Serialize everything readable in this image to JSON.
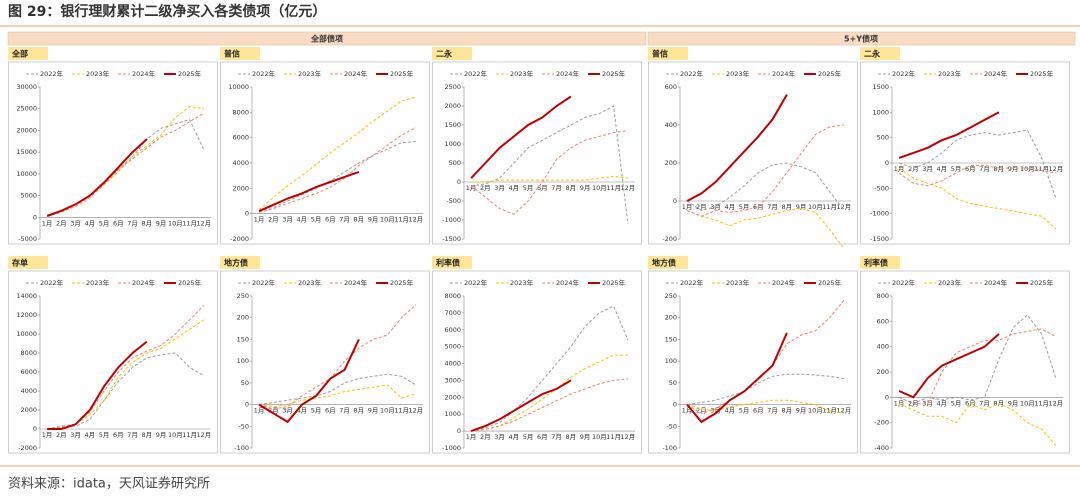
{
  "title": "图 29：银行理财累计二级净买入各类债项（亿元）",
  "source": "资料来源：idata，天风证券研究所",
  "header": [
    "全部债项",
    "5+Y债项"
  ],
  "chart_data": [
    {
      "type": "line",
      "title": "全部",
      "categories": [
        "1月",
        "2月",
        "3月",
        "4月",
        "5月",
        "6月",
        "7月",
        "8月",
        "9月",
        "10月",
        "11月",
        "12月"
      ],
      "ylim": [
        -5000,
        30000
      ],
      "yticks": [
        -5000,
        0,
        5000,
        10000,
        15000,
        20000,
        25000,
        30000
      ],
      "series": [
        {
          "name": "2022年",
          "color": "#9e9e9e",
          "values": [
            500,
            1500,
            3000,
            5000,
            8000,
            11000,
            14000,
            18000,
            20500,
            21500,
            22500,
            15500
          ]
        },
        {
          "name": "2023年",
          "color": "#ffc000",
          "values": [
            300,
            1500,
            3000,
            5000,
            7500,
            10500,
            14000,
            16500,
            19000,
            23000,
            25500,
            25000
          ]
        },
        {
          "name": "2024年",
          "color": "#f4826a",
          "values": [
            200,
            1200,
            2500,
            4500,
            7500,
            11000,
            13500,
            16000,
            18500,
            20000,
            22000,
            24000
          ]
        },
        {
          "name": "2025年",
          "color": "#c00000",
          "values": [
            300,
            1500,
            3000,
            5000,
            8000,
            11500,
            15000,
            18000,
            null,
            null,
            null,
            null
          ]
        }
      ]
    },
    {
      "type": "line",
      "title": "普信",
      "categories": [
        "1月",
        "2月",
        "3月",
        "4月",
        "5月",
        "6月",
        "7月",
        "8月",
        "9月",
        "10月",
        "11月",
        "12月"
      ],
      "ylim": [
        -2000,
        10000
      ],
      "yticks": [
        -2000,
        0,
        2000,
        4000,
        6000,
        8000,
        10000
      ],
      "series": [
        {
          "name": "2022年",
          "color": "#9e9e9e",
          "values": [
            200,
            500,
            1000,
            1500,
            2000,
            2600,
            3300,
            4000,
            4600,
            5100,
            5600,
            5700
          ]
        },
        {
          "name": "2023年",
          "color": "#ffc000",
          "values": [
            300,
            1300,
            2200,
            3000,
            3900,
            4800,
            5600,
            6400,
            7300,
            8100,
            8900,
            9200
          ]
        },
        {
          "name": "2024年",
          "color": "#f4826a",
          "values": [
            100,
            400,
            800,
            1200,
            1600,
            2100,
            2800,
            3800,
            4600,
            5400,
            6200,
            6800
          ]
        },
        {
          "name": "2025年",
          "color": "#c00000",
          "values": [
            200,
            700,
            1200,
            1600,
            2100,
            2500,
            2900,
            3300,
            null,
            null,
            null,
            null
          ]
        }
      ]
    },
    {
      "type": "line",
      "title": "二永",
      "categories": [
        "1月",
        "2月",
        "3月",
        "4月",
        "5月",
        "6月",
        "7月",
        "8月",
        "9月",
        "10月",
        "11月",
        "12月"
      ],
      "ylim": [
        -1500,
        2500
      ],
      "yticks": [
        -1500,
        -1000,
        -500,
        0,
        500,
        1000,
        1500,
        2000,
        2500
      ],
      "series": [
        {
          "name": "2022年",
          "color": "#9e9e9e",
          "values": [
            -100,
            -50,
            100,
            500,
            900,
            1100,
            1300,
            1500,
            1700,
            1800,
            2000,
            -1100
          ]
        },
        {
          "name": "2023年",
          "color": "#ffc000",
          "values": [
            0,
            0,
            50,
            50,
            50,
            50,
            50,
            50,
            50,
            100,
            150,
            100
          ]
        },
        {
          "name": "2024年",
          "color": "#f4826a",
          "values": [
            -100,
            -400,
            -700,
            -850,
            -500,
            0,
            600,
            900,
            1100,
            1200,
            1300,
            1350
          ]
        },
        {
          "name": "2025年",
          "color": "#c00000",
          "values": [
            100,
            500,
            900,
            1200,
            1500,
            1700,
            2000,
            2250,
            null,
            null,
            null,
            null
          ]
        }
      ]
    },
    {
      "type": "line",
      "title": "普信",
      "categories": [
        "1月",
        "2月",
        "3月",
        "4月",
        "5月",
        "6月",
        "7月",
        "8月",
        "9月",
        "10月",
        "11月",
        "12月"
      ],
      "ylim": [
        -200,
        600
      ],
      "yticks": [
        -200,
        0,
        200,
        400,
        600
      ],
      "series": [
        {
          "name": "2022年",
          "color": "#9e9e9e",
          "values": [
            0,
            -50,
            -30,
            20,
            80,
            150,
            190,
            200,
            180,
            150,
            50,
            -50
          ]
        },
        {
          "name": "2023年",
          "color": "#ffc000",
          "values": [
            -50,
            -80,
            -100,
            -130,
            -100,
            -90,
            -70,
            -50,
            -40,
            -60,
            -150,
            -250
          ]
        },
        {
          "name": "2024年",
          "color": "#f4826a",
          "values": [
            -50,
            -80,
            -50,
            -60,
            -50,
            -30,
            50,
            150,
            250,
            350,
            390,
            400
          ]
        },
        {
          "name": "2025年",
          "color": "#c00000",
          "values": [
            0,
            40,
            100,
            180,
            260,
            340,
            430,
            560,
            null,
            null,
            null,
            null
          ]
        }
      ]
    },
    {
      "type": "line",
      "title": "二永",
      "categories": [
        "1月",
        "2月",
        "3月",
        "4月",
        "5月",
        "6月",
        "7月",
        "8月",
        "9月",
        "10月",
        "11月",
        "12月"
      ],
      "ylim": [
        -1500,
        1500
      ],
      "yticks": [
        -1500,
        -1000,
        -500,
        0,
        500,
        1000,
        1500
      ],
      "series": [
        {
          "name": "2022年",
          "color": "#9e9e9e",
          "values": [
            0,
            -100,
            0,
            200,
            450,
            550,
            600,
            550,
            600,
            650,
            100,
            -700
          ]
        },
        {
          "name": "2023年",
          "color": "#ffc000",
          "values": [
            -100,
            -300,
            -400,
            -500,
            -700,
            -800,
            -850,
            -900,
            -950,
            -1000,
            -1050,
            -1300
          ]
        },
        {
          "name": "2024年",
          "color": "#f4826a",
          "values": [
            -200,
            -400,
            -450,
            -350,
            -200,
            -50,
            -50,
            -100,
            -100,
            -100,
            -150,
            -200
          ]
        },
        {
          "name": "2025年",
          "color": "#c00000",
          "values": [
            100,
            200,
            300,
            450,
            550,
            700,
            850,
            1000,
            null,
            null,
            null,
            null
          ]
        }
      ]
    },
    {
      "type": "line",
      "title": "存单",
      "categories": [
        "1月",
        "2月",
        "3月",
        "4月",
        "5月",
        "6月",
        "7月",
        "8月",
        "9月",
        "10月",
        "11月",
        "12月"
      ],
      "ylim": [
        -2000,
        14000
      ],
      "yticks": [
        -2000,
        0,
        2000,
        4000,
        6000,
        8000,
        10000,
        12000,
        14000
      ],
      "series": [
        {
          "name": "2022年",
          "color": "#9e9e9e",
          "values": [
            0,
            200,
            300,
            1000,
            3000,
            5000,
            6500,
            7500,
            7800,
            8000,
            6500,
            5600
          ]
        },
        {
          "name": "2023年",
          "color": "#ffc000",
          "values": [
            0,
            100,
            500,
            1500,
            3000,
            5500,
            7000,
            8000,
            8500,
            9500,
            10500,
            11500
          ]
        },
        {
          "name": "2024年",
          "color": "#f4826a",
          "values": [
            0,
            300,
            500,
            1800,
            4000,
            6000,
            7500,
            8200,
            8800,
            10000,
            11500,
            13000
          ]
        },
        {
          "name": "2025年",
          "color": "#c00000",
          "values": [
            0,
            0,
            500,
            2000,
            4500,
            6500,
            8000,
            9200,
            null,
            null,
            null,
            null
          ]
        }
      ]
    },
    {
      "type": "line",
      "title": "地方债",
      "categories": [
        "1月",
        "2月",
        "3月",
        "4月",
        "5月",
        "6月",
        "7月",
        "8月",
        "9月",
        "10月",
        "11月",
        "12月"
      ],
      "ylim": [
        -100,
        250
      ],
      "yticks": [
        -100,
        -50,
        0,
        50,
        100,
        150,
        200,
        250
      ],
      "series": [
        {
          "name": "2022年",
          "color": "#9e9e9e",
          "values": [
            0,
            5,
            10,
            15,
            20,
            30,
            50,
            60,
            65,
            70,
            65,
            45
          ]
        },
        {
          "name": "2023年",
          "color": "#ffc000",
          "values": [
            0,
            -5,
            0,
            10,
            15,
            20,
            30,
            35,
            40,
            45,
            15,
            25
          ]
        },
        {
          "name": "2024年",
          "color": "#f4826a",
          "values": [
            0,
            -10,
            -5,
            20,
            40,
            60,
            100,
            130,
            150,
            160,
            200,
            230
          ]
        },
        {
          "name": "2025年",
          "color": "#c00000",
          "values": [
            0,
            -20,
            -40,
            0,
            20,
            60,
            80,
            150,
            null,
            null,
            null,
            null
          ]
        }
      ]
    },
    {
      "type": "line",
      "title": "利率债",
      "categories": [
        "1月",
        "2月",
        "3月",
        "4月",
        "5月",
        "6月",
        "7月",
        "8月",
        "9月",
        "10月",
        "11月",
        "12月"
      ],
      "ylim": [
        -1000,
        8000
      ],
      "yticks": [
        -1000,
        0,
        1000,
        2000,
        3000,
        4000,
        5000,
        6000,
        7000,
        8000
      ],
      "series": [
        {
          "name": "2022年",
          "color": "#9e9e9e",
          "values": [
            0,
            200,
            500,
            1200,
            2000,
            3000,
            4000,
            5000,
            6200,
            7000,
            7400,
            5400
          ]
        },
        {
          "name": "2023年",
          "color": "#ffc000",
          "values": [
            0,
            100,
            300,
            800,
            1300,
            1900,
            2500,
            3200,
            3700,
            4100,
            4500,
            4500
          ]
        },
        {
          "name": "2024年",
          "color": "#f4826a",
          "values": [
            0,
            100,
            300,
            600,
            1000,
            1400,
            1800,
            2200,
            2500,
            2800,
            3000,
            3100
          ]
        },
        {
          "name": "2025年",
          "color": "#c00000",
          "values": [
            0,
            300,
            700,
            1200,
            1700,
            2200,
            2500,
            3000,
            null,
            null,
            null,
            null
          ]
        }
      ]
    },
    {
      "type": "line",
      "title": "地方债",
      "categories": [
        "1月",
        "2月",
        "3月",
        "4月",
        "5月",
        "6月",
        "7月",
        "8月",
        "9月",
        "10月",
        "11月",
        "12月"
      ],
      "ylim": [
        -100,
        250
      ],
      "yticks": [
        -100,
        -50,
        0,
        50,
        100,
        150,
        200,
        250
      ],
      "series": [
        {
          "name": "2022年",
          "color": "#9e9e9e",
          "values": [
            0,
            5,
            10,
            20,
            30,
            50,
            65,
            70,
            70,
            68,
            65,
            60
          ]
        },
        {
          "name": "2023年",
          "color": "#ffc000",
          "values": [
            0,
            -10,
            -15,
            -5,
            0,
            5,
            10,
            10,
            5,
            0,
            -15,
            -20
          ]
        },
        {
          "name": "2024年",
          "color": "#f4826a",
          "values": [
            0,
            -20,
            -10,
            10,
            30,
            60,
            90,
            140,
            160,
            170,
            200,
            240
          ]
        },
        {
          "name": "2025年",
          "color": "#c00000",
          "values": [
            0,
            -40,
            -20,
            10,
            30,
            60,
            90,
            165,
            null,
            null,
            null,
            null
          ]
        }
      ]
    },
    {
      "type": "line",
      "title": "利率债",
      "categories": [
        "1月",
        "2月",
        "3月",
        "4月",
        "5月",
        "6月",
        "7月",
        "8月",
        "9月",
        "10月",
        "11月",
        "12月"
      ],
      "ylim": [
        -400,
        800
      ],
      "yticks": [
        -400,
        -200,
        0,
        200,
        400,
        600,
        800
      ],
      "series": [
        {
          "name": "2022年",
          "color": "#9e9e9e",
          "values": [
            0,
            -50,
            0,
            -20,
            0,
            -20,
            0,
            300,
            550,
            650,
            500,
            150
          ]
        },
        {
          "name": "2023年",
          "color": "#ffc000",
          "values": [
            -50,
            -100,
            -150,
            -150,
            -200,
            -50,
            -100,
            -50,
            -100,
            -200,
            -250,
            -380
          ]
        },
        {
          "name": "2024年",
          "color": "#f4826a",
          "values": [
            0,
            -50,
            -50,
            200,
            350,
            400,
            450,
            450,
            500,
            520,
            540,
            480
          ]
        },
        {
          "name": "2025年",
          "color": "#c00000",
          "values": [
            50,
            0,
            150,
            250,
            300,
            350,
            400,
            500,
            null,
            null,
            null,
            null
          ]
        }
      ]
    }
  ]
}
